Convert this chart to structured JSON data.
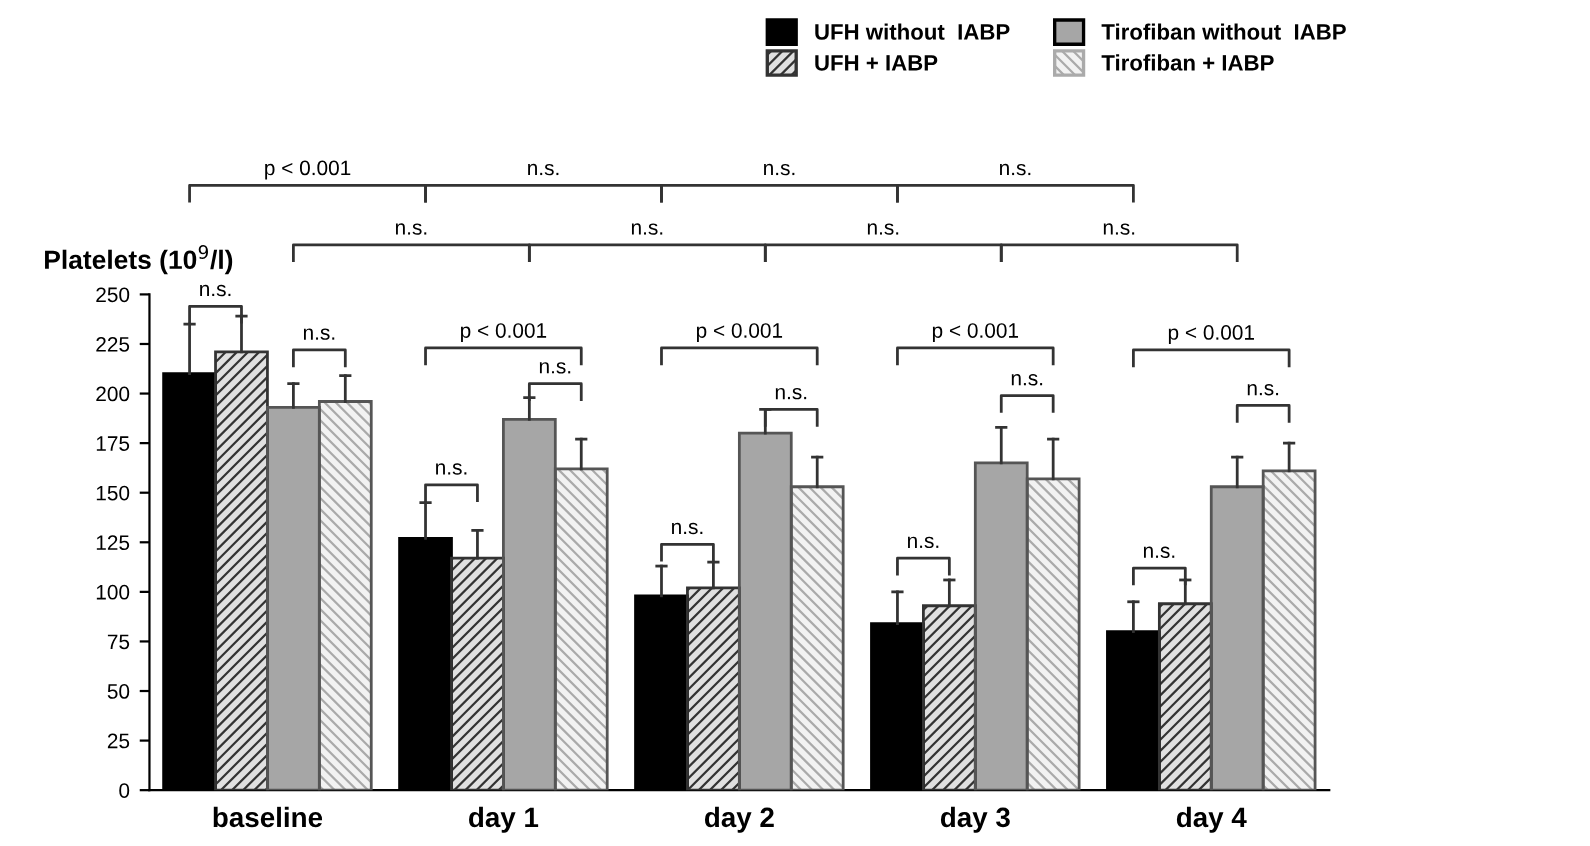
{
  "chart_data": {
    "type": "bar",
    "ylabel": "Platelets (10$^{9}$/l)",
    "categories": [
      "baseline",
      "day 1",
      "day 2",
      "day 3",
      "day 4"
    ],
    "series": [
      {
        "name": "UFH without  IABP",
        "color": "#000000",
        "values": [
          210,
          127,
          98,
          84,
          80
        ],
        "errors": [
          [
            210,
            235
          ],
          [
            127,
            145
          ],
          [
            98,
            113
          ],
          [
            84,
            100
          ],
          [
            80,
            95
          ]
        ]
      },
      {
        "name": "UFH + IABP",
        "color": "#e0e0e0",
        "values": [
          221,
          117,
          102,
          93,
          94
        ],
        "errors": [
          [
            221,
            239
          ],
          [
            117,
            131
          ],
          [
            102,
            115
          ],
          [
            93,
            106
          ],
          [
            94,
            106
          ]
        ]
      },
      {
        "name": "Tirofiban without  IABP",
        "color": "#a6a6a6",
        "values": [
          193,
          187,
          180,
          165,
          153
        ],
        "errors": [
          [
            193,
            205
          ],
          [
            187,
            198
          ],
          [
            180,
            192
          ],
          [
            165,
            183
          ],
          [
            153,
            168
          ]
        ]
      },
      {
        "name": "Tirofiban + IABP",
        "color": "#f2f2f2",
        "values": [
          196,
          162,
          153,
          157,
          161
        ],
        "errors": [
          [
            196,
            209
          ],
          [
            162,
            177
          ],
          [
            153,
            168
          ],
          [
            157,
            177
          ],
          [
            161,
            175
          ]
        ]
      }
    ],
    "ylim": [
      0,
      250
    ],
    "yticks": [
      0,
      25,
      50,
      75,
      100,
      125,
      150,
      175,
      200,
      225,
      250
    ],
    "grid": false,
    "legend": "top",
    "annotations": [
      "p < 0.001",
      "n.s.",
      "n.s.",
      "n.s.",
      "n.s.",
      "n.s.",
      "n.s.",
      "n.s.",
      "n.s.",
      "n.s.",
      "p < 0.001",
      "n.s.",
      "n.s.",
      "p < 0.001",
      "n.s.",
      "n.s.",
      "p < 0.001",
      "n.s.",
      "n.s.",
      "p < 0.001",
      "n.s.",
      "n.s."
    ]
  }
}
